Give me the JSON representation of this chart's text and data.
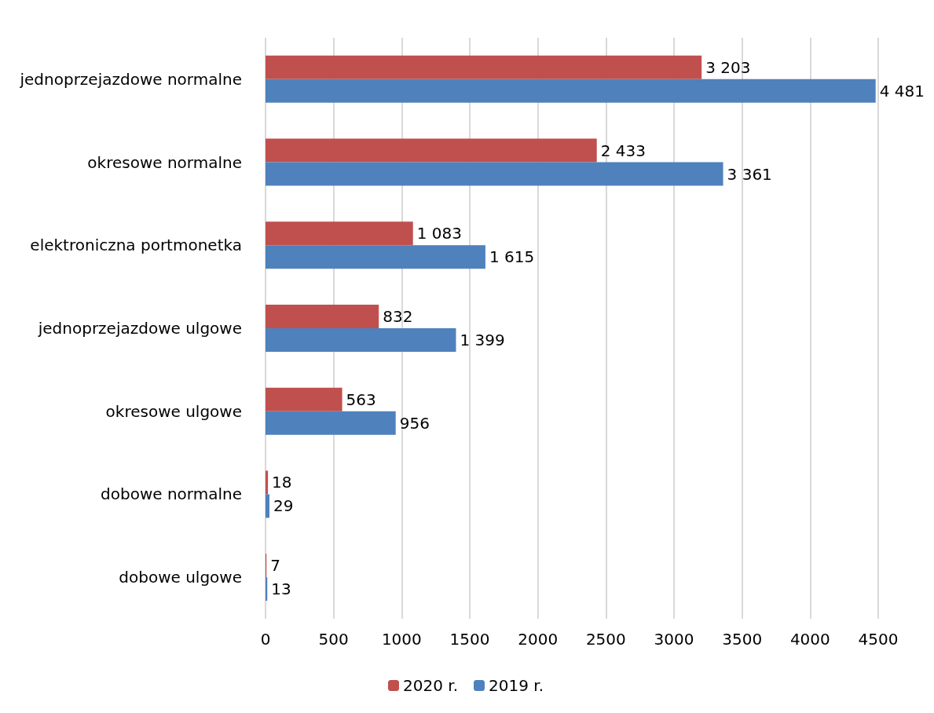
{
  "chart_data": {
    "type": "bar",
    "orientation": "horizontal",
    "categories": [
      "jednoprzejazdowe normalne",
      "okresowe normalne",
      "elektroniczna portmonetka",
      "jednoprzejazdowe ulgowe",
      "okresowe ulgowe",
      "dobowe normalne",
      "dobowe ulgowe"
    ],
    "series": [
      {
        "name": "2020 r.",
        "color": "#c0504d",
        "values": [
          3203,
          2433,
          1083,
          832,
          563,
          18,
          7
        ],
        "value_labels": [
          "3 203",
          "2 433",
          "1 083",
          "832",
          "563",
          "18",
          "7"
        ]
      },
      {
        "name": "2019 r.",
        "color": "#4f81bd",
        "values": [
          4481,
          3361,
          1615,
          1399,
          956,
          29,
          13
        ],
        "value_labels": [
          "4 481",
          "3 361",
          "1 615",
          "1 399",
          "956",
          "29",
          "13"
        ]
      }
    ],
    "xlim": [
      0,
      4500
    ],
    "xticks": [
      0,
      500,
      1000,
      1500,
      2000,
      2500,
      3000,
      3500,
      4000,
      4500
    ],
    "grid": "x",
    "legend": "bottom"
  }
}
